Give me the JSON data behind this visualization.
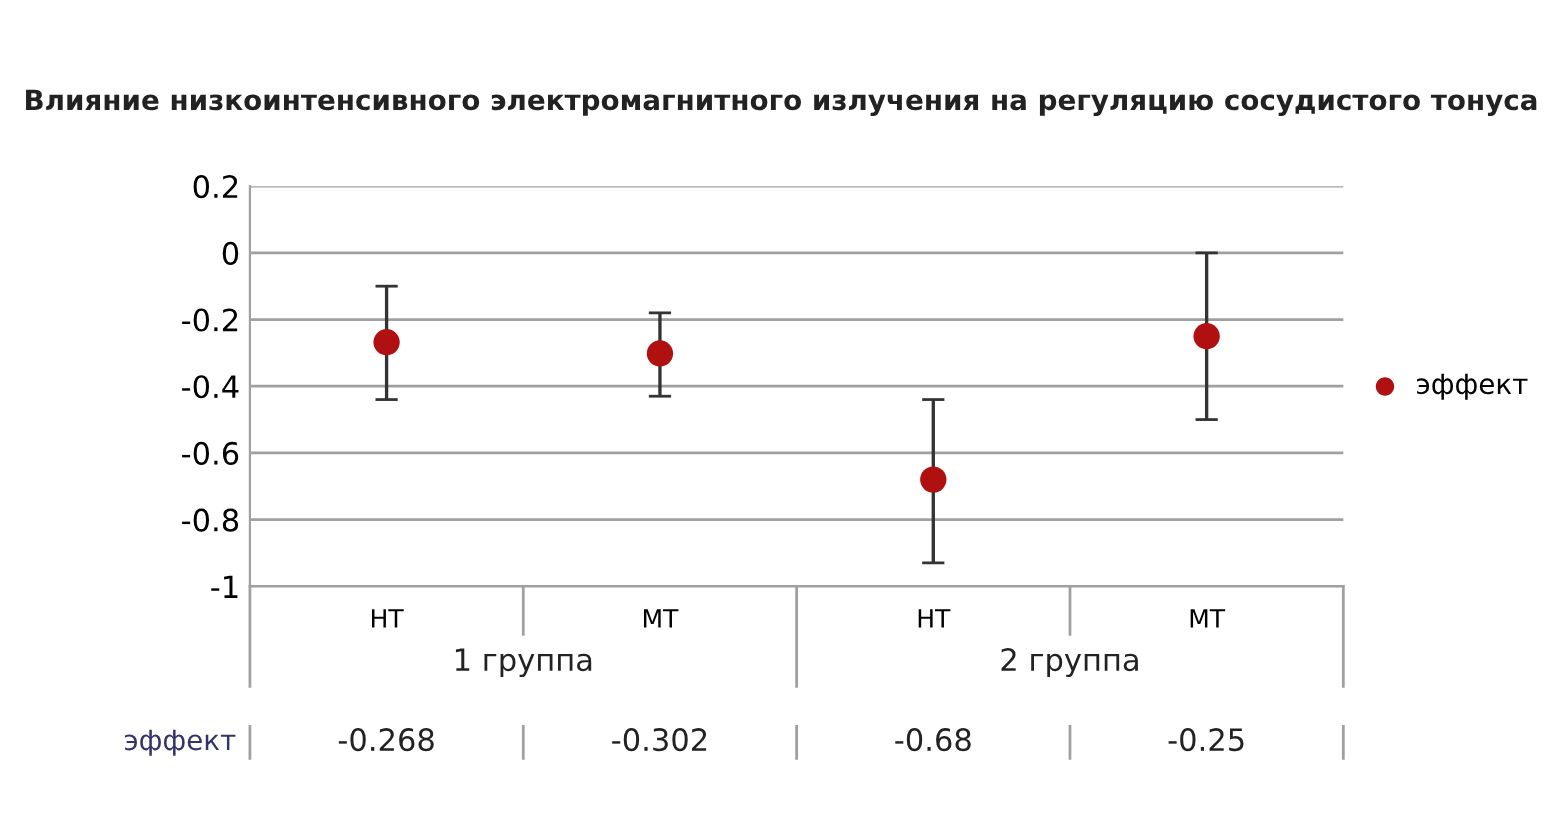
{
  "chart_data": {
    "type": "scatter",
    "title": "Влияние низкоинтенсивного электромагнитного излучения на регуляцию сосудистого тонуса",
    "categories": [
      "НТ",
      "МТ",
      "НТ",
      "МТ"
    ],
    "series": [
      {
        "name": "эффект",
        "color": "#b01010",
        "values": [
          -0.268,
          -0.302,
          -0.68,
          -0.25
        ],
        "errors": [
          [
            -0.44,
            -0.1
          ],
          [
            -0.43,
            -0.18
          ],
          [
            -0.93,
            -0.44
          ],
          [
            -0.5,
            0.0
          ]
        ]
      }
    ],
    "annotations": [
      "1 группа",
      "2 группа"
    ],
    "ylim": [
      -1,
      0.2
    ],
    "yticks": [
      0.2,
      0,
      -0.2,
      -0.4,
      -0.6,
      -0.8,
      -1
    ],
    "grid": "y",
    "legend": "right",
    "marker": "circle",
    "data_labels": true
  }
}
